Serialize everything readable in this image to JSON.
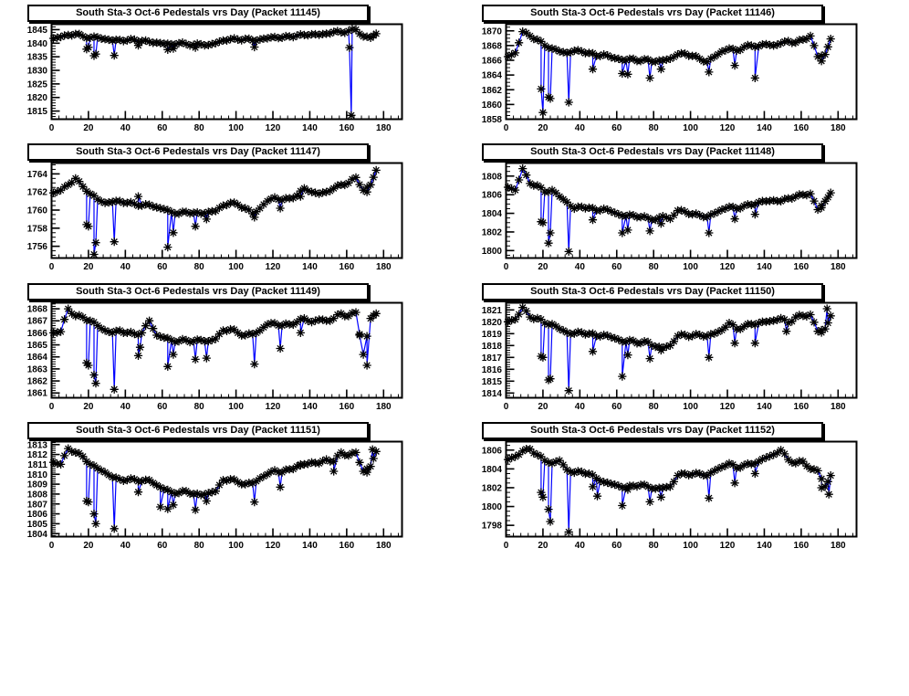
{
  "style": {
    "background": "#ffffff",
    "line_color": "#0000ff",
    "marker_color": "#000000",
    "frame_color": "#000000",
    "title_bg": "#ffffff",
    "marker_glyph": "asterisk-star"
  },
  "chart_shared": {
    "base_x": [
      1,
      5,
      9,
      13,
      17,
      21,
      25,
      29,
      33,
      37,
      41,
      45,
      49,
      53,
      57,
      61,
      65,
      69,
      73,
      77,
      81,
      85,
      89,
      93,
      97,
      101,
      105,
      109,
      113,
      117,
      121,
      125,
      129,
      133,
      137,
      141,
      145,
      149,
      153,
      157,
      161,
      165,
      169,
      173,
      176
    ],
    "x_axis": {
      "min": 0,
      "max": 190,
      "major_ticks": [
        0,
        20,
        40,
        60,
        80,
        100,
        120,
        140,
        160,
        180
      ],
      "minor_step": 4
    },
    "xlabel": "",
    "ylabel": "",
    "grid": false,
    "legend": "none"
  },
  "chart_data": [
    {
      "type": "scatter-line",
      "title": "South Sta-3 Oct-6 Pedestals vrs Day (Packet 11145)",
      "y": {
        "min": 1812,
        "max": 1847,
        "major_ticks": [
          1815,
          1820,
          1825,
          1830,
          1835,
          1840,
          1845
        ],
        "minor_step": 1
      },
      "base_y": [
        1841.8,
        1842.3,
        1843.0,
        1843.4,
        1842.6,
        1842.0,
        1842.2,
        1841.5,
        1841.0,
        1841.2,
        1841.0,
        1841.3,
        1840.8,
        1840.5,
        1840.2,
        1839.8,
        1839.6,
        1840.0,
        1839.7,
        1839.4,
        1839.6,
        1839.3,
        1840.0,
        1841.0,
        1841.5,
        1841.3,
        1841.6,
        1841.0,
        1841.4,
        1841.8,
        1842.3,
        1842.0,
        1842.5,
        1842.8,
        1843.0,
        1843.3,
        1843.1,
        1843.5,
        1844.2,
        1844.0,
        1844.5,
        1845.0,
        1842.5,
        1842.0,
        1843.5
      ],
      "spikes": [
        [
          19,
          1837.8
        ],
        [
          20,
          1838.5
        ],
        [
          23,
          1835.4
        ],
        [
          24,
          1836.0
        ],
        [
          34,
          1835.5
        ],
        [
          47,
          1839.2
        ],
        [
          63,
          1837.6
        ],
        [
          66,
          1838.0
        ],
        [
          78,
          1838.4
        ],
        [
          110,
          1838.6
        ],
        [
          161.5,
          1838.4
        ],
        [
          162.5,
          1813.4
        ]
      ]
    },
    {
      "type": "scatter-line",
      "title": "South Sta-3 Oct-6 Pedestals vrs Day (Packet 11146)",
      "y": {
        "min": 1858,
        "max": 1870.9,
        "major_ticks": [
          1858,
          1860,
          1862,
          1864,
          1866,
          1868,
          1870
        ],
        "minor_step": 0.5
      },
      "base_y": [
        1866.5,
        1867.0,
        1869.9,
        1869.3,
        1868.8,
        1868.0,
        1867.6,
        1867.2,
        1867.0,
        1867.3,
        1867.2,
        1867.0,
        1866.6,
        1866.8,
        1866.4,
        1866.2,
        1866.0,
        1866.2,
        1865.9,
        1866.1,
        1865.8,
        1866.0,
        1866.2,
        1866.8,
        1866.9,
        1866.6,
        1866.2,
        1865.8,
        1866.5,
        1867.2,
        1867.6,
        1867.3,
        1867.8,
        1868.0,
        1867.9,
        1868.2,
        1868.0,
        1868.3,
        1868.6,
        1868.4,
        1868.8,
        1869.3,
        1866.5,
        1866.8,
        1868.9
      ],
      "spikes": [
        [
          19,
          1862.1
        ],
        [
          20,
          1858.9
        ],
        [
          23,
          1861.0
        ],
        [
          24,
          1860.8
        ],
        [
          34,
          1860.3
        ],
        [
          47,
          1864.8
        ],
        [
          63,
          1864.2
        ],
        [
          66,
          1864.1
        ],
        [
          78,
          1863.6
        ],
        [
          84,
          1864.8
        ],
        [
          110,
          1864.4
        ],
        [
          124,
          1865.3
        ],
        [
          135,
          1863.6
        ],
        [
          171,
          1865.9
        ]
      ]
    },
    {
      "type": "scatter-line",
      "title": "South Sta-3 Oct-6 Pedestals vrs Day (Packet 11147)",
      "y": {
        "min": 1754.7,
        "max": 1765.2,
        "major_ticks": [
          1756,
          1758,
          1760,
          1762,
          1764
        ],
        "minor_step": 0.5
      },
      "base_y": [
        1761.9,
        1762.2,
        1762.8,
        1763.5,
        1762.6,
        1761.8,
        1761.2,
        1760.8,
        1760.9,
        1761.0,
        1760.8,
        1760.7,
        1760.5,
        1760.6,
        1760.3,
        1760.1,
        1759.8,
        1759.6,
        1759.8,
        1759.7,
        1759.6,
        1759.8,
        1759.9,
        1760.5,
        1760.8,
        1760.6,
        1760.2,
        1759.6,
        1760.2,
        1761.0,
        1761.4,
        1761.1,
        1761.3,
        1761.6,
        1762.4,
        1762.0,
        1761.8,
        1762.0,
        1762.4,
        1762.8,
        1763.0,
        1763.6,
        1762.2,
        1762.8,
        1764.4
      ],
      "spikes": [
        [
          19,
          1758.4
        ],
        [
          20,
          1758.2
        ],
        [
          23,
          1755.1
        ],
        [
          24,
          1756.4
        ],
        [
          34,
          1756.5
        ],
        [
          47,
          1761.5
        ],
        [
          63,
          1755.9
        ],
        [
          66,
          1757.5
        ],
        [
          78,
          1758.2
        ],
        [
          84,
          1759.0
        ],
        [
          110,
          1759.2
        ],
        [
          124,
          1760.2
        ],
        [
          135,
          1761.5
        ],
        [
          171,
          1762.0
        ]
      ]
    },
    {
      "type": "scatter-line",
      "title": "South Sta-3 Oct-6 Pedestals vrs Day (Packet 11148)",
      "y": {
        "min": 1799.2,
        "max": 1809.4,
        "major_ticks": [
          1800,
          1802,
          1804,
          1806,
          1808
        ],
        "minor_step": 0.5
      },
      "base_y": [
        1806.8,
        1806.5,
        1808.8,
        1807.2,
        1807.0,
        1806.3,
        1806.5,
        1805.8,
        1805.2,
        1804.5,
        1804.7,
        1804.6,
        1804.3,
        1804.5,
        1804.2,
        1803.9,
        1803.7,
        1803.8,
        1803.6,
        1803.5,
        1803.3,
        1803.7,
        1803.4,
        1804.3,
        1804.2,
        1803.9,
        1803.8,
        1803.6,
        1804.0,
        1804.4,
        1804.7,
        1804.5,
        1804.8,
        1804.9,
        1805.2,
        1805.3,
        1805.4,
        1805.3,
        1805.6,
        1805.8,
        1806.0,
        1806.1,
        1804.4,
        1805.3,
        1806.2
      ],
      "spikes": [
        [
          19,
          1803.1
        ],
        [
          20,
          1803.0
        ],
        [
          23,
          1800.8
        ],
        [
          24,
          1801.9
        ],
        [
          34,
          1799.9
        ],
        [
          47,
          1803.3
        ],
        [
          63,
          1801.9
        ],
        [
          66,
          1802.2
        ],
        [
          78,
          1802.1
        ],
        [
          84,
          1802.9
        ],
        [
          110,
          1801.9
        ],
        [
          124,
          1803.4
        ],
        [
          135,
          1803.9
        ],
        [
          171,
          1804.6
        ]
      ]
    },
    {
      "type": "scatter-line",
      "title": "South Sta-3 Oct-6 Pedestals vrs Day (Packet 11149)",
      "y": {
        "min": 1860.6,
        "max": 1868.5,
        "major_ticks": [
          1861,
          1862,
          1863,
          1864,
          1865,
          1866,
          1867,
          1868
        ],
        "minor_step": 0.2
      },
      "base_y": [
        1866.0,
        1866.1,
        1868.0,
        1867.4,
        1867.3,
        1867.0,
        1866.6,
        1866.2,
        1866.0,
        1866.2,
        1866.0,
        1865.9,
        1866.0,
        1867.0,
        1865.8,
        1865.6,
        1865.4,
        1865.3,
        1865.4,
        1865.3,
        1865.4,
        1865.3,
        1865.5,
        1866.2,
        1866.3,
        1866.0,
        1865.8,
        1865.9,
        1866.2,
        1866.7,
        1866.8,
        1866.6,
        1866.7,
        1866.9,
        1867.2,
        1866.9,
        1867.1,
        1867.0,
        1867.2,
        1867.6,
        1867.4,
        1867.7,
        1864.2,
        1867.2,
        1867.6
      ],
      "spikes": [
        [
          19,
          1863.5
        ],
        [
          20,
          1863.3
        ],
        [
          23,
          1862.5
        ],
        [
          24,
          1861.8
        ],
        [
          34,
          1861.3
        ],
        [
          47,
          1864.1
        ],
        [
          48,
          1864.8
        ],
        [
          63,
          1863.2
        ],
        [
          66,
          1864.2
        ],
        [
          78,
          1863.8
        ],
        [
          84,
          1863.9
        ],
        [
          110,
          1863.4
        ],
        [
          124,
          1864.7
        ],
        [
          135,
          1866.0
        ],
        [
          167,
          1865.8
        ],
        [
          171,
          1863.3
        ]
      ]
    },
    {
      "type": "scatter-line",
      "title": "South Sta-3 Oct-6 Pedestals vrs Day (Packet 11150)",
      "y": {
        "min": 1813.6,
        "max": 1821.6,
        "major_ticks": [
          1814,
          1815,
          1816,
          1817,
          1818,
          1819,
          1820,
          1821
        ],
        "minor_step": 0.2
      },
      "base_y": [
        1820.0,
        1820.2,
        1821.2,
        1820.4,
        1820.3,
        1819.9,
        1819.8,
        1819.4,
        1819.1,
        1819.0,
        1819.1,
        1819.0,
        1818.8,
        1818.9,
        1818.7,
        1818.5,
        1818.3,
        1818.4,
        1818.2,
        1818.3,
        1817.9,
        1817.8,
        1818.0,
        1818.8,
        1818.9,
        1818.8,
        1818.9,
        1818.8,
        1819.0,
        1819.3,
        1819.9,
        1819.4,
        1819.6,
        1819.8,
        1819.9,
        1820.0,
        1820.1,
        1820.3,
        1819.9,
        1820.4,
        1820.5,
        1820.6,
        1819.2,
        1819.4,
        1820.5
      ],
      "spikes": [
        [
          19,
          1817.1
        ],
        [
          20,
          1817.0
        ],
        [
          23,
          1815.1
        ],
        [
          24,
          1815.2
        ],
        [
          34,
          1814.2
        ],
        [
          47,
          1817.5
        ],
        [
          63,
          1815.4
        ],
        [
          66,
          1817.2
        ],
        [
          78,
          1816.9
        ],
        [
          84,
          1817.6
        ],
        [
          110,
          1817.0
        ],
        [
          124,
          1818.2
        ],
        [
          135,
          1818.2
        ],
        [
          152,
          1819.2
        ],
        [
          171,
          1819.1
        ],
        [
          174,
          1821.1
        ]
      ]
    },
    {
      "type": "scatter-line",
      "title": "South Sta-3 Oct-6 Pedestals vrs Day (Packet 11151)",
      "y": {
        "min": 1803.7,
        "max": 1813.3,
        "major_ticks": [
          1804,
          1805,
          1806,
          1807,
          1808,
          1809,
          1810,
          1811,
          1812,
          1813
        ],
        "minor_step": 0.2
      },
      "base_y": [
        1811.2,
        1811.0,
        1812.6,
        1812.2,
        1811.8,
        1811.0,
        1810.6,
        1810.2,
        1809.7,
        1809.5,
        1809.4,
        1809.5,
        1809.3,
        1809.4,
        1808.9,
        1808.5,
        1808.2,
        1808.1,
        1808.3,
        1808.0,
        1807.9,
        1808.1,
        1808.3,
        1809.4,
        1809.5,
        1809.2,
        1809.0,
        1809.1,
        1809.6,
        1810.0,
        1810.4,
        1810.2,
        1810.5,
        1810.8,
        1811.0,
        1811.2,
        1811.1,
        1811.5,
        1811.3,
        1812.2,
        1811.9,
        1812.2,
        1810.3,
        1810.8,
        1812.3
      ],
      "spikes": [
        [
          19,
          1807.3
        ],
        [
          20,
          1807.2
        ],
        [
          23,
          1806.0
        ],
        [
          24,
          1805.0
        ],
        [
          34,
          1804.5
        ],
        [
          47,
          1808.2
        ],
        [
          59,
          1806.7
        ],
        [
          63,
          1806.5
        ],
        [
          66,
          1806.9
        ],
        [
          78,
          1806.4
        ],
        [
          84,
          1807.3
        ],
        [
          110,
          1807.2
        ],
        [
          124,
          1808.7
        ],
        [
          135,
          1810.9
        ],
        [
          153,
          1810.3
        ],
        [
          171,
          1810.2
        ],
        [
          174,
          1812.5
        ]
      ]
    },
    {
      "type": "scatter-line",
      "title": "South Sta-3 Oct-6 Pedestals vrs Day (Packet 11152)",
      "y": {
        "min": 1796.8,
        "max": 1806.9,
        "major_ticks": [
          1798,
          1800,
          1802,
          1804,
          1806
        ],
        "minor_step": 0.5
      },
      "base_y": [
        1805.0,
        1805.3,
        1805.9,
        1806.1,
        1805.5,
        1804.9,
        1804.6,
        1804.9,
        1803.9,
        1803.6,
        1803.7,
        1803.5,
        1803.0,
        1802.6,
        1802.4,
        1802.2,
        1802.0,
        1802.2,
        1802.3,
        1802.1,
        1801.9,
        1802.0,
        1802.1,
        1803.3,
        1803.5,
        1803.4,
        1803.5,
        1803.3,
        1803.8,
        1804.2,
        1804.6,
        1804.1,
        1804.4,
        1804.5,
        1804.8,
        1805.2,
        1805.5,
        1806.0,
        1805.0,
        1804.6,
        1804.8,
        1804.0,
        1803.8,
        1802.1,
        1803.3
      ],
      "spikes": [
        [
          19,
          1801.5
        ],
        [
          20,
          1801.0
        ],
        [
          23,
          1799.7
        ],
        [
          24,
          1798.4
        ],
        [
          34,
          1797.3
        ],
        [
          47,
          1802.1
        ],
        [
          49.5,
          1801.1
        ],
        [
          63,
          1800.1
        ],
        [
          66,
          1801.8
        ],
        [
          78,
          1800.5
        ],
        [
          84,
          1801.0
        ],
        [
          110,
          1800.9
        ],
        [
          124,
          1802.5
        ],
        [
          135,
          1803.5
        ],
        [
          171,
          1802.0
        ],
        [
          175,
          1801.3
        ]
      ]
    }
  ]
}
